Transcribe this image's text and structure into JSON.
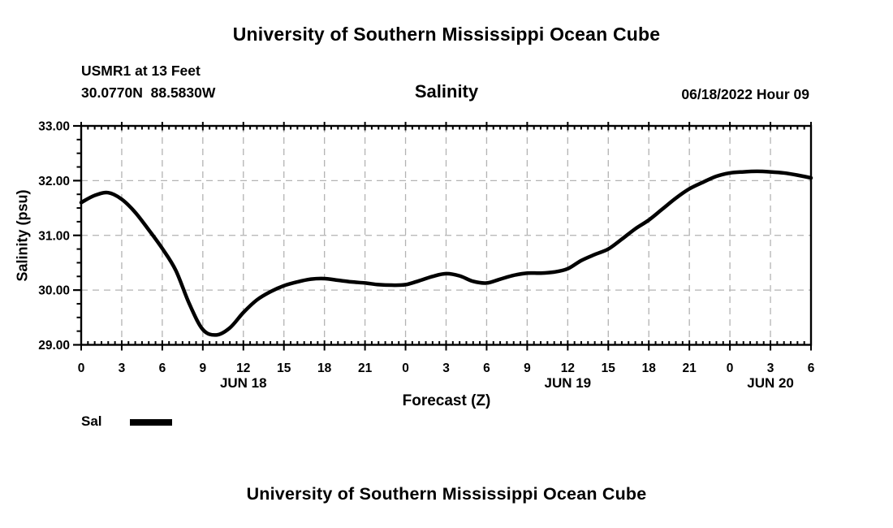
{
  "titles": {
    "main": "University of Southern Mississippi Ocean Cube",
    "secondary": "University of Southern Mississippi Ocean Cube"
  },
  "header": {
    "station": "USMR1 at 13 Feet",
    "coordinates": "30.0770N  88.5830W",
    "plot_title": "Salinity",
    "datetime": "06/18/2022 Hour 09"
  },
  "legend": {
    "label": "Sal",
    "swatch_color": "#000000"
  },
  "colors": {
    "background": "#ffffff",
    "text": "#000000",
    "grid": "#b3b3b3",
    "axis": "#000000",
    "line": "#000000"
  },
  "chart_data": {
    "type": "line",
    "title": "Salinity",
    "xlabel": "Forecast (Z)",
    "ylabel": "Salinity (psu)",
    "xlim_hours": [
      0,
      54
    ],
    "ylim": [
      29.0,
      33.0
    ],
    "grid": "dashed",
    "x_tick_hours": [
      0,
      3,
      6,
      9,
      12,
      15,
      18,
      21,
      24,
      27,
      30,
      33,
      36,
      39,
      42,
      45,
      48,
      51,
      54
    ],
    "x_tick_labels": [
      "0",
      "3",
      "6",
      "9",
      "12",
      "15",
      "18",
      "21",
      "0",
      "3",
      "6",
      "9",
      "12",
      "15",
      "18",
      "21",
      "0",
      "3",
      "6"
    ],
    "y_ticks": [
      29,
      30,
      31,
      32,
      33
    ],
    "y_tick_labels": [
      "29.00",
      "30.00",
      "31.00",
      "32.00",
      "33.00"
    ],
    "minor_x_step_hours": 0.5,
    "minor_y_step": 0.25,
    "date_labels": [
      {
        "label": "JUN 18",
        "hour": 12
      },
      {
        "label": "JUN 19",
        "hour": 36
      },
      {
        "label": "JUN 20",
        "hour": 51
      }
    ],
    "x": [
      0,
      1,
      2,
      3,
      4,
      5,
      6,
      7,
      8,
      9,
      10,
      11,
      12,
      13,
      14,
      15,
      16,
      17,
      18,
      19,
      20,
      21,
      22,
      23,
      24,
      25,
      26,
      27,
      28,
      29,
      30,
      31,
      32,
      33,
      34,
      35,
      36,
      37,
      38,
      39,
      40,
      41,
      42,
      43,
      44,
      45,
      46,
      47,
      48,
      49,
      50,
      51,
      52,
      53,
      54
    ],
    "series": [
      {
        "name": "Sal",
        "color": "#000000",
        "values": [
          31.6,
          31.73,
          31.78,
          31.66,
          31.42,
          31.1,
          30.76,
          30.36,
          29.75,
          29.28,
          29.18,
          29.31,
          29.59,
          29.82,
          29.97,
          30.08,
          30.15,
          30.2,
          30.21,
          30.18,
          30.15,
          30.13,
          30.1,
          30.09,
          30.1,
          30.17,
          30.25,
          30.3,
          30.26,
          30.16,
          30.13,
          30.2,
          30.27,
          30.31,
          30.31,
          30.33,
          30.39,
          30.54,
          30.65,
          30.75,
          30.93,
          31.12,
          31.28,
          31.48,
          31.68,
          31.85,
          31.97,
          32.08,
          32.14,
          32.16,
          32.17,
          32.16,
          32.14,
          32.1,
          32.05
        ]
      }
    ],
    "legend_position": "below-left"
  }
}
